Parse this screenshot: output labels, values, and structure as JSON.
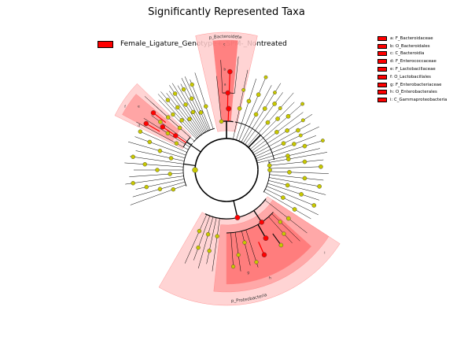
{
  "title": "Significantly Represented Taxa",
  "group_legend": {
    "label": "Female_Ligature_Genotype+_SPM-_Nontreated",
    "color": "#ff0000"
  },
  "taxa_legend": [
    "a: F_Bacteroidaceae",
    "b: O_Bacteroidales",
    "c: C_Bacteroidia",
    "d: F_Enterococcaceae",
    "e: F_Lactobacillaceae",
    "f: O_Lactobacillales",
    "g: F_Enterobacteriaceae",
    "h: O_Enterobacterales",
    "i: C_Gammaproteobacteria"
  ],
  "sector_labels": {
    "bacteroidetes": "p_Bacteroidetes",
    "proteobacteria": "p_Proteobacteria",
    "a": "a",
    "b": "b",
    "c": "c",
    "d": "d",
    "e": "e",
    "f": "f",
    "g": "g",
    "h": "h",
    "i": "i"
  },
  "colors": {
    "enriched": "#ff0000",
    "node": "#c8c800",
    "shade_light": "#ffcccc",
    "shade_mid": "#ff9999",
    "shade_dark": "#ff6666"
  }
}
